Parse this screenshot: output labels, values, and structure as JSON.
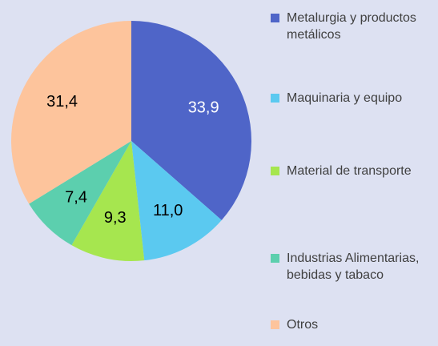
{
  "chart_data": {
    "type": "pie",
    "categories": [
      "Metalurgia y productos metálicos",
      "Maquinaria y equipo",
      "Material de transporte",
      "Industrias Alimentarias, bebidas y tabaco",
      "Otros"
    ],
    "values": [
      33.9,
      11.0,
      9.3,
      7.4,
      31.4
    ],
    "value_labels": [
      "33,9",
      "11,0",
      "9,3",
      "7,4",
      "31,4"
    ],
    "colors": [
      "#4f65c8",
      "#5bc9f0",
      "#a6e64f",
      "#5ccfae",
      "#fdc49c"
    ],
    "label_colors": [
      "#ffffff",
      "#000000",
      "#000000",
      "#000000",
      "#000000"
    ],
    "legend": "right"
  }
}
